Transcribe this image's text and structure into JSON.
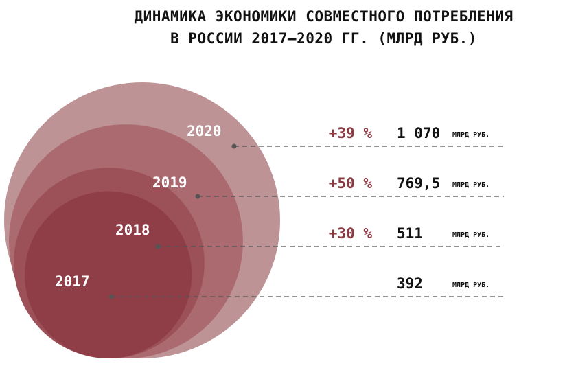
{
  "chart_data": {
    "type": "bubble",
    "title_lines": [
      "ДИНАМИКА ЭКОНОМИКИ СОВМЕСТНОГО ПОТРЕБЛЕНИЯ",
      "В РОССИИ 2017–2020 ГГ. (МЛРД РУБ.)"
    ],
    "unit": "МЛРД РУБ.",
    "series": [
      {
        "year": "2017",
        "value": 392,
        "value_label": "392",
        "growth": "",
        "color": "#8f3e48"
      },
      {
        "year": "2018",
        "value": 511,
        "value_label": "511",
        "growth": "+30 %",
        "color": "#9c5058"
      },
      {
        "year": "2019",
        "value": 769.5,
        "value_label": "769,5",
        "growth": "+50 %",
        "color": "#ab6a70"
      },
      {
        "year": "2020",
        "value": 1070,
        "value_label": "1 070",
        "growth": "+39 %",
        "color": "#bd9396"
      }
    ]
  }
}
